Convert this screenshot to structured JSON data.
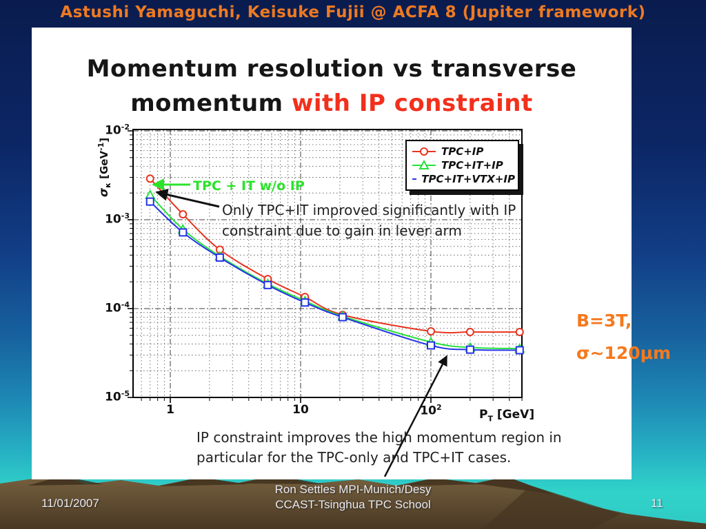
{
  "header": {
    "title": "Astushi Yamaguchi, Keisuke Fujii @ ACFA 8 (Jupiter framework)"
  },
  "slide": {
    "title_line1": "Momentum resolution vs transverse",
    "title_line2_black": "momentum ",
    "title_line2_red": "with IP constraint",
    "annotations": {
      "green_label": "TPC + IT w/o IP",
      "callout_line1": "Only TPC+IT improved significantly with IP",
      "callout_line2": "constraint due to gain in lever arm",
      "bottom_line1": "IP constraint improves the high momentum region in",
      "bottom_line2": "particular for the TPC-only and TPC+IT cases."
    },
    "side_note": {
      "line1": "B=3T,",
      "line2": "σ~120μm",
      "color": "#f5791e"
    }
  },
  "chart_data": {
    "type": "line",
    "title": "Momentum resolution vs transverse momentum with IP constraint",
    "x_scale": "log",
    "y_scale": "log",
    "xlim": [
      0.52,
      500
    ],
    "ylim": [
      1e-05,
      0.0104
    ],
    "grid": "dashed log-log major+minor",
    "legend_position": "upper right",
    "xlabel": {
      "pre": "P",
      "sub": "T",
      "post": " [GeV]"
    },
    "ylabel": {
      "sym": "σ",
      "sub": "κ",
      "post": " [GeV",
      "exp": "-1",
      "close": "]"
    },
    "x_ticks": [
      {
        "base": "1",
        "exp": "",
        "value": 1
      },
      {
        "base": "10",
        "exp": "",
        "value": 10
      },
      {
        "base": "10",
        "exp": "2",
        "value": 100
      }
    ],
    "y_ticks": [
      {
        "base": "10",
        "exp": "-2",
        "value": 0.01
      },
      {
        "base": "10",
        "exp": "-3",
        "value": 0.001
      },
      {
        "base": "10",
        "exp": "-4",
        "value": 0.0001
      },
      {
        "base": "10",
        "exp": "-5",
        "value": 1e-05
      }
    ],
    "x": [
      0.7,
      1.25,
      2.4,
      5.6,
      10.8,
      21,
      100,
      200,
      480
    ],
    "series": [
      {
        "name": "TPC+IP",
        "color": "#e8341f",
        "marker": "circle",
        "values": [
          0.0029,
          0.00115,
          0.00046,
          0.000215,
          0.000135,
          8.5e-05,
          5.55e-05,
          5.45e-05,
          5.45e-05
        ]
      },
      {
        "name": "TPC+IT+IP",
        "color": "#27e13c",
        "marker": "triangle",
        "values": [
          0.0019,
          0.00078,
          0.000388,
          0.00019,
          0.000122,
          8.2e-05,
          4.2e-05,
          3.65e-05,
          3.55e-05
        ]
      },
      {
        "name": "TPC+IT+VTX+IP",
        "color": "#2433e6",
        "marker": "square",
        "values": [
          0.0016,
          0.00072,
          0.000375,
          0.000184,
          0.000117,
          8e-05,
          3.85e-05,
          3.45e-05,
          3.4e-05
        ]
      }
    ]
  },
  "footer": {
    "date": "11/01/2007",
    "center_line1": "Ron Settles  MPI-Munich/Desy",
    "center_line2": "CCAST-Tsinghua TPC School",
    "page": "11"
  }
}
